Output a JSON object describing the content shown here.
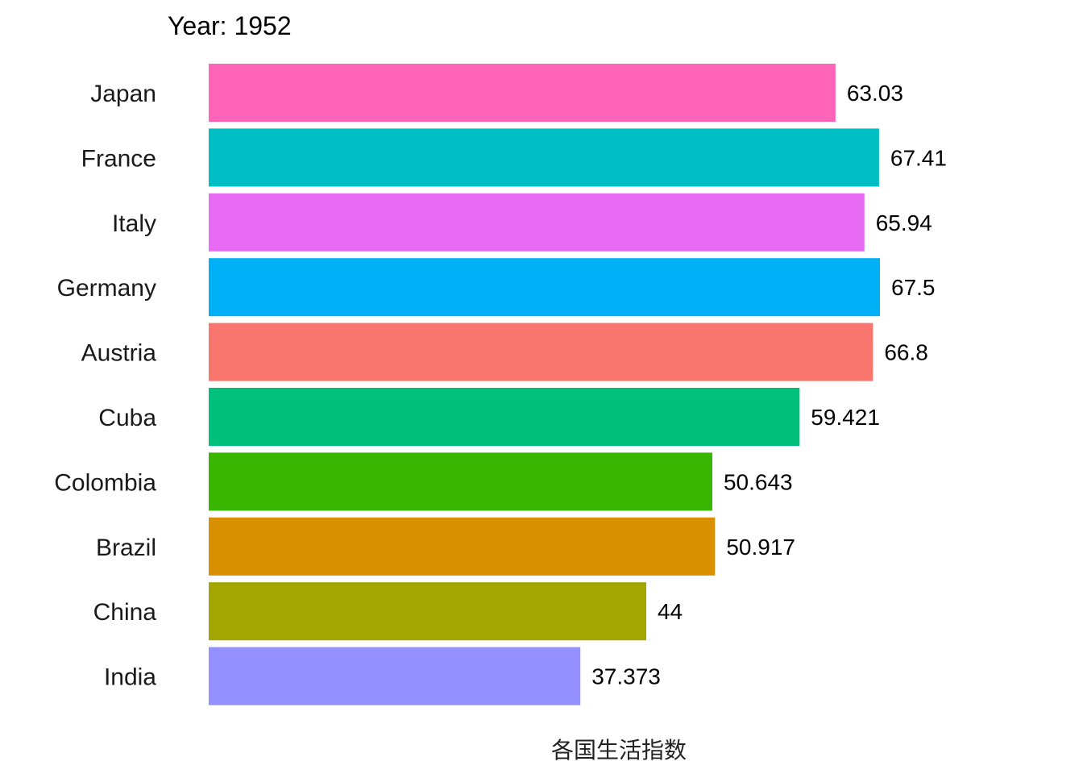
{
  "chart_data": {
    "type": "bar",
    "orientation": "horizontal",
    "title": "Year: 1952",
    "xlabel": "各国生活指数",
    "ylabel": "",
    "grid": false,
    "legend": "none",
    "categories": [
      "Japan",
      "France",
      "Italy",
      "Germany",
      "Austria",
      "Cuba",
      "Colombia",
      "Brazil",
      "China",
      "India"
    ],
    "values": [
      63.03,
      67.41,
      65.94,
      67.5,
      66.8,
      59.421,
      50.643,
      50.917,
      44,
      37.373
    ],
    "value_labels": [
      "63.03",
      "67.41",
      "65.94",
      "67.5",
      "66.8",
      "59.421",
      "50.643",
      "50.917",
      "44",
      "37.373"
    ],
    "colors": [
      "#FF64B9",
      "#00BFC4",
      "#E76BF3",
      "#00B0F6",
      "#F8766D",
      "#00C07B",
      "#39B600",
      "#D89000",
      "#A3A500",
      "#9590FF"
    ],
    "xlim": [
      0,
      67.5
    ]
  }
}
